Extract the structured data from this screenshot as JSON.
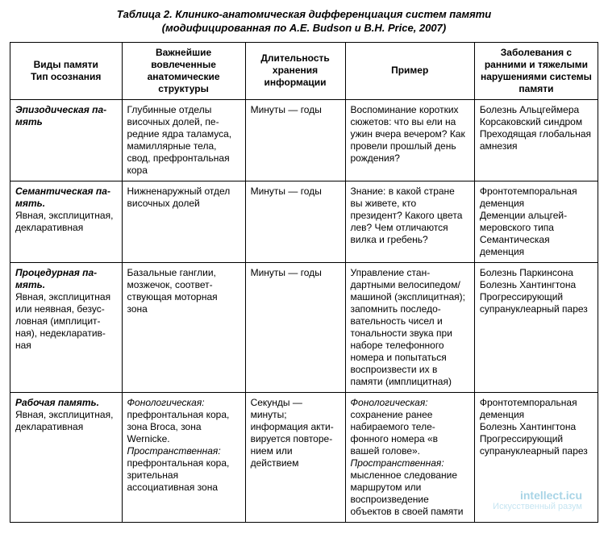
{
  "title_line1": "Таблица 2. Клинико-анатомическая дифференциация систем памяти",
  "title_line2": "(модифицированная по A.E. Budson и B.H. Price, 2007)",
  "columns": {
    "c1a": "Виды памяти",
    "c1b": "Тип осознания",
    "c2": "Важнейшие вовлеченные анатомические структуры",
    "c3": "Длительность хранения информации",
    "c4": "Пример",
    "c5": "Заболевания с ранними и тяжелыми нару­шениями системы памяти"
  },
  "rows": [
    {
      "name": "Эпизодическая па­мять",
      "rest": "",
      "struct": "Глубинные отделы височных долей, пе­редние ядра тала­муса, мамиллярные тела, свод, префрон­тальная кора",
      "dur": "Минуты — годы",
      "example_plain": "Воспоминание коротких сюжетов: что вы ели на ужин вчера вечером? Как провели прошлый день рождения?",
      "disease": "Болезнь Альцгей­мера\nКорсаковский син­дром\nПреходящая гло­бальная амнезия"
    },
    {
      "name": "Семантическая па­мять.",
      "rest": "Явная, эксплицит­ная, декларативная",
      "struct": "Нижненаружный от­дел височных долей",
      "dur": "Минуты — годы",
      "example_plain": "Знание: в какой стране вы живете, кто президент? Ка­кого цвета лев? Чем отличаются вилка и гребень?",
      "disease": "Фронтотемпораль­ная деменция\nДеменции альцгей­меровского типа\nСемантическая деменция"
    },
    {
      "name": "Процедурная па­мять.",
      "rest": "Явная, эксплицитная или неявная, безус­ловная (имплицит­ная), недекларатив­ная",
      "struct": "Базальные ганглии, мозжечок, соответ­ствующая моторная зона",
      "dur": "Минуты — годы",
      "example_plain": "Управление стан­дартными велоси­педом/машиной (эксплицитная); запомнить последо­вательность чисел и тональности звука при наборе теле­фонного номера и попытаться воспро­извести их в памяти (имплицитная)",
      "disease": "Болезнь Паркин­сона\nБолезнь Хантинг­тона\nПрогрессирующий супрануклеарный парез"
    },
    {
      "name": "Рабочая память.",
      "rest": "Явная, эксплицит­ная, декларативная",
      "struct_parts": {
        "h1": "Фонологическая:",
        "t1": " префронтальная кора, зона Broca, зона Wernicke.",
        "h2": "Пространственная:",
        "t2": " префронтальная кора, зрительная ассоциативная зона"
      },
      "dur": "Секунды — минуты; информация акти­вируется повторе­нием или действием",
      "example_parts": {
        "h1": "Фонологическая:",
        "t1": " сохранение ранее набираемого теле­фонного номера «в вашей голове».",
        "h2": "Пространственная:",
        "t2": " мысленное следо­вание маршрутом или воспроизве­дение объектов в своей памяти"
      },
      "disease": "Фронтотемпораль­ная деменция\nБолезнь Хантинг­тона\nПрогрессирующий супрануклеарный парез"
    }
  ],
  "watermark": {
    "top": "intellect.icu",
    "bottom": "Искусственный разум"
  },
  "styling": {
    "background_color": "#ffffff",
    "border_color": "#000000",
    "text_color": "#000000",
    "header_font_size": 12,
    "body_font_size": 12,
    "title_font_size": 13,
    "font_family": "Arial",
    "column_widths_pct": [
      19,
      21,
      17,
      22,
      21
    ],
    "watermark_color": "#9fd3e8"
  }
}
